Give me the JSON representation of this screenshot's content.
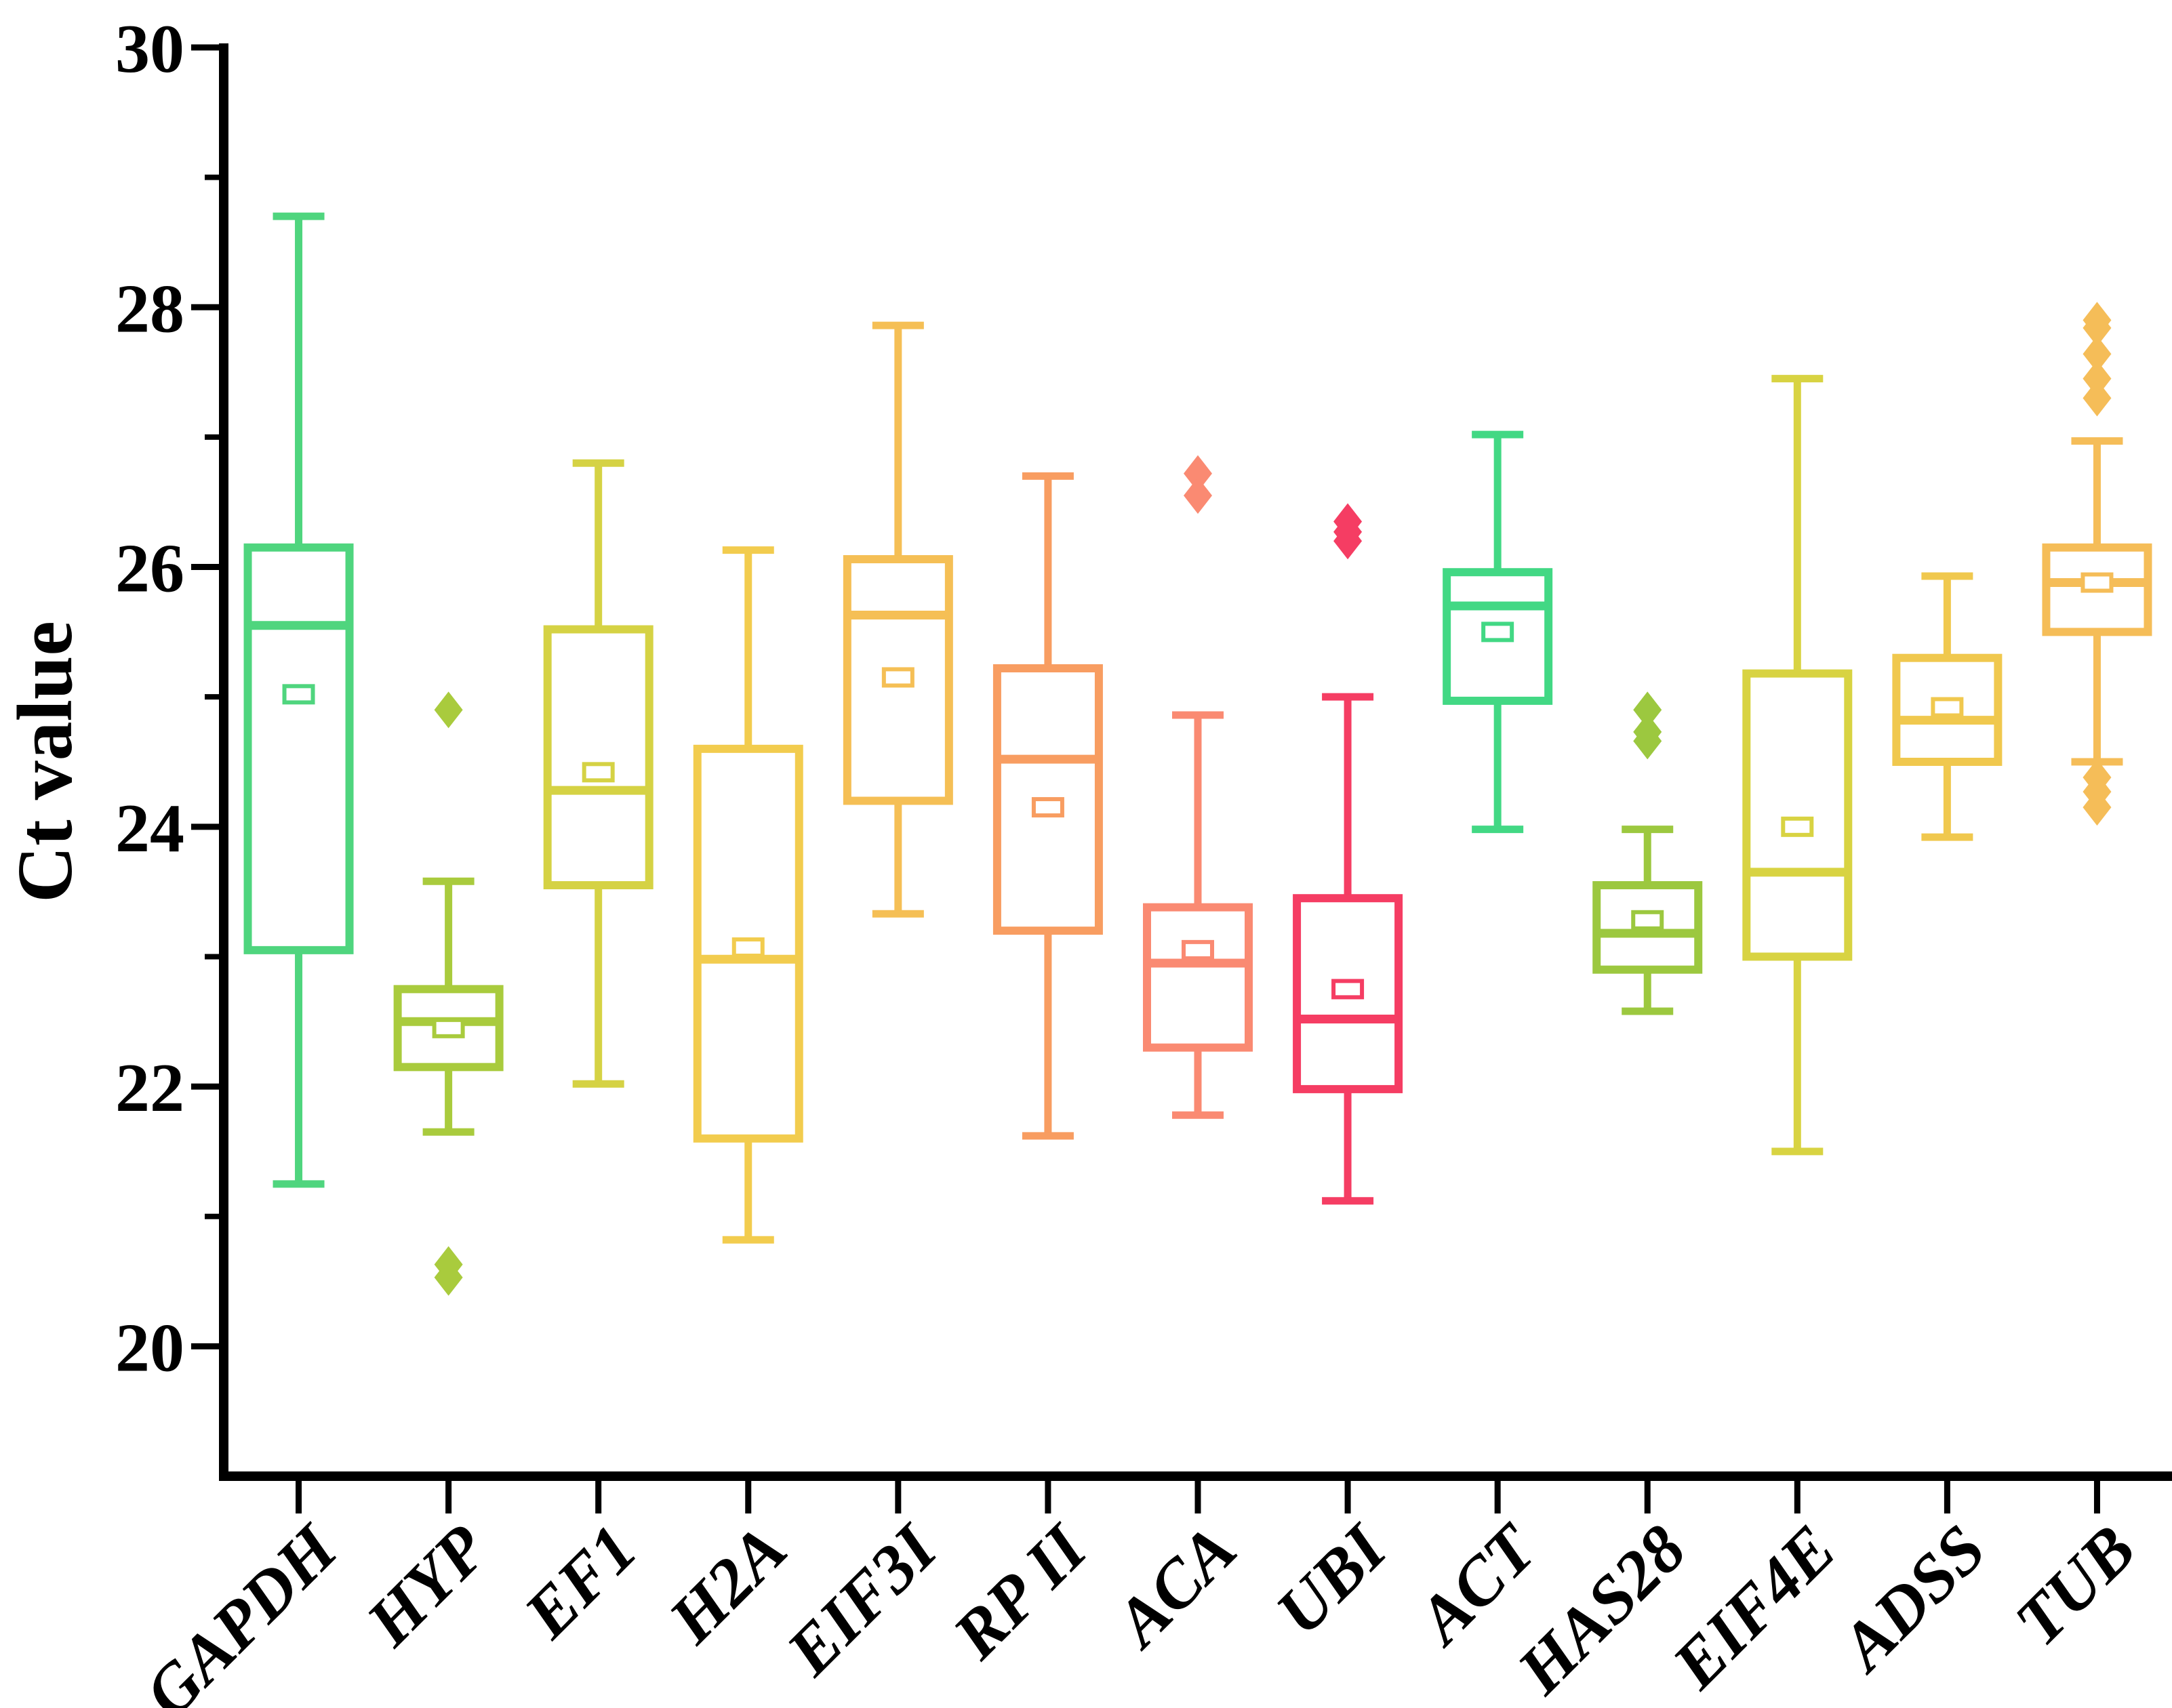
{
  "figure": {
    "background_color": "#ffffff",
    "axis_color": "#000000"
  },
  "chart_data": {
    "type": "boxplot",
    "title": "",
    "xlabel": "",
    "ylabel": "Ct value",
    "ylim": [
      19,
      30
    ],
    "yticks_major": [
      20,
      22,
      24,
      26,
      28,
      30
    ],
    "yticks_minor": [
      21,
      23,
      25,
      27,
      29
    ],
    "grid": false,
    "legend": "none",
    "categories": [
      "GAPDH",
      "HYP",
      "EF1",
      "H2A",
      "EIF3I",
      "RP II",
      "ACA",
      "UBI",
      "ACT",
      "HAS28",
      "EIF4E",
      "ADSS",
      "TUB"
    ],
    "series": [
      {
        "name": "GAPDH",
        "color": "#4fd57e",
        "whisker_low": 21.25,
        "q1": 23.05,
        "median": 25.55,
        "q3": 26.15,
        "whisker_high": 28.7,
        "mean": 25.02,
        "outliers": []
      },
      {
        "name": "HYP",
        "color": "#a9cb3d",
        "whisker_low": 21.65,
        "q1": 22.15,
        "median": 22.5,
        "q3": 22.75,
        "whisker_high": 23.58,
        "mean": 22.45,
        "outliers": [
          24.9,
          20.63,
          20.53
        ]
      },
      {
        "name": "EF1",
        "color": "#d5d244",
        "whisker_low": 22.02,
        "q1": 23.55,
        "median": 24.28,
        "q3": 25.52,
        "whisker_high": 26.8,
        "mean": 24.42,
        "outliers": []
      },
      {
        "name": "H2A",
        "color": "#f2cc4e",
        "whisker_low": 20.82,
        "q1": 21.6,
        "median": 22.98,
        "q3": 24.6,
        "whisker_high": 26.13,
        "mean": 23.07,
        "outliers": []
      },
      {
        "name": "EIF3I",
        "color": "#f5bf55",
        "whisker_low": 23.33,
        "q1": 24.2,
        "median": 25.63,
        "q3": 26.06,
        "whisker_high": 27.86,
        "mean": 25.15,
        "outliers": []
      },
      {
        "name": "RP II",
        "color": "#f89d61",
        "whisker_low": 21.62,
        "q1": 23.2,
        "median": 24.52,
        "q3": 25.22,
        "whisker_high": 26.7,
        "mean": 24.15,
        "outliers": []
      },
      {
        "name": "ACA",
        "color": "#fa8a72",
        "whisker_low": 21.78,
        "q1": 22.3,
        "median": 22.95,
        "q3": 23.38,
        "whisker_high": 24.86,
        "mean": 23.05,
        "outliers": [
          26.72,
          26.55
        ]
      },
      {
        "name": "UBI",
        "color": "#f53d63",
        "whisker_low": 21.12,
        "q1": 21.98,
        "median": 22.52,
        "q3": 23.45,
        "whisker_high": 25.0,
        "mean": 22.75,
        "outliers": [
          26.35,
          26.27,
          26.2
        ]
      },
      {
        "name": "ACT",
        "color": "#42d884",
        "whisker_low": 23.98,
        "q1": 24.97,
        "median": 25.7,
        "q3": 25.96,
        "whisker_high": 27.02,
        "mean": 25.5,
        "outliers": []
      },
      {
        "name": "HAS28",
        "color": "#9cc83f",
        "whisker_low": 22.58,
        "q1": 22.9,
        "median": 23.18,
        "q3": 23.55,
        "whisker_high": 23.98,
        "mean": 23.28,
        "outliers": [
          24.9,
          24.73,
          24.66
        ]
      },
      {
        "name": "EIF4E",
        "color": "#d8d342",
        "whisker_low": 21.5,
        "q1": 23.0,
        "median": 23.65,
        "q3": 25.18,
        "whisker_high": 27.45,
        "mean": 24.0,
        "outliers": []
      },
      {
        "name": "ADSS",
        "color": "#f0c84e",
        "whisker_low": 23.92,
        "q1": 24.5,
        "median": 24.82,
        "q3": 25.3,
        "whisker_high": 25.93,
        "mean": 24.92,
        "outliers": []
      },
      {
        "name": "TUB",
        "color": "#f5bd58",
        "whisker_low": 24.5,
        "q1": 25.5,
        "median": 25.88,
        "q3": 26.15,
        "whisker_high": 26.97,
        "mean": 25.88,
        "outliers": [
          27.9,
          27.84,
          27.64,
          27.45,
          27.3,
          24.38,
          24.27,
          24.15
        ]
      }
    ]
  }
}
